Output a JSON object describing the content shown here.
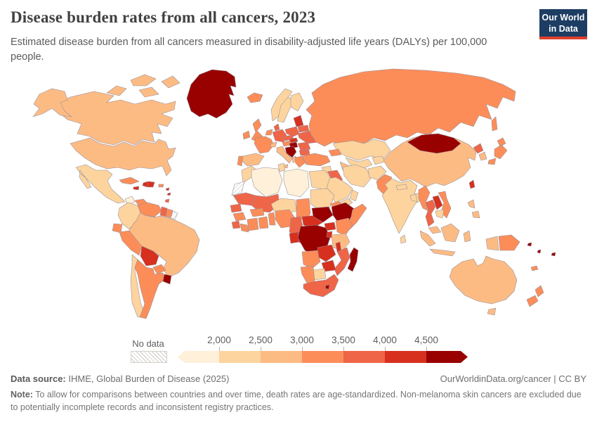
{
  "header": {
    "title": "Disease burden rates from all cancers, 2023",
    "subtitle": "Estimated disease burden from all cancers measured in disability-adjusted life years (DALYs) per 100,000 people."
  },
  "logo": {
    "line1": "Our World",
    "line2": "in Data",
    "bg": "#1d3d63",
    "accent": "#e0402c"
  },
  "legend": {
    "no_data_label": "No data",
    "tick_labels": [
      "2,000",
      "2,500",
      "3,000",
      "3,500",
      "4,000",
      "4,500"
    ]
  },
  "footer": {
    "source_label": "Data source:",
    "source_text": " IHME, Global Burden of Disease (2025)",
    "link": "OurWorldinData.org/cancer | CC BY",
    "note_label": "Note:",
    "note_text": " To allow for comparisons between countries and over time, death rates are age-standardized. Non-melanoma skin cancers are excluded due to potentially incomplete records and inconsistent registry practices."
  },
  "chart_data": {
    "type": "choropleth_map",
    "title": "Disease burden rates from all cancers, 2023",
    "metric": "DALYs from all cancers per 100,000 people (age-standardized)",
    "year": 2023,
    "legend_bins": [
      {
        "range": "< 2,000",
        "color": "#fef0d9"
      },
      {
        "range": "2,000-2,500",
        "color": "#fdd49e"
      },
      {
        "range": "2,500-3,000",
        "color": "#fdbb84"
      },
      {
        "range": "3,000-3,500",
        "color": "#fc8d59"
      },
      {
        "range": "3,500-4,000",
        "color": "#ef6548"
      },
      {
        "range": "4,000-4,500",
        "color": "#d7301f"
      },
      {
        "range": "> 4,500",
        "color": "#990000"
      }
    ],
    "no_data_countries": [
      "Western Sahara",
      "French Guiana"
    ],
    "countries": [
      {
        "id": "canada",
        "name": "Canada",
        "bin": 2
      },
      {
        "id": "usa",
        "name": "United States",
        "bin": 2
      },
      {
        "id": "greenland",
        "name": "Greenland",
        "bin": 6
      },
      {
        "id": "iceland",
        "name": "Iceland",
        "bin": 3
      },
      {
        "id": "mexico",
        "name": "Mexico",
        "bin": 1
      },
      {
        "id": "guatemala",
        "name": "Guatemala",
        "bin": 0
      },
      {
        "id": "honduras",
        "name": "Honduras",
        "bin": 3
      },
      {
        "id": "nicaragua",
        "name": "Nicaragua",
        "bin": 1
      },
      {
        "id": "costa-rica",
        "name": "Costa Rica",
        "bin": 1
      },
      {
        "id": "panama",
        "name": "Panama",
        "bin": 3
      },
      {
        "id": "cuba",
        "name": "Cuba",
        "bin": 3
      },
      {
        "id": "jamaica",
        "name": "Jamaica",
        "bin": 5
      },
      {
        "id": "haiti",
        "name": "Haiti",
        "bin": 5
      },
      {
        "id": "dominican-republic",
        "name": "Dominican Republic",
        "bin": 5
      },
      {
        "id": "puerto-rico",
        "name": "Puerto Rico",
        "bin": 3
      },
      {
        "id": "lesser-antilles",
        "name": "Lesser Antilles",
        "bin": 5
      },
      {
        "id": "trinidad-and-tobago",
        "name": "Trinidad and Tobago",
        "bin": 4
      },
      {
        "id": "colombia",
        "name": "Colombia",
        "bin": 1
      },
      {
        "id": "venezuela",
        "name": "Venezuela",
        "bin": 3
      },
      {
        "id": "guyana",
        "name": "Guyana",
        "bin": 4
      },
      {
        "id": "suriname",
        "name": "Suriname",
        "bin": 3
      },
      {
        "id": "french-guiana",
        "name": "French Guiana",
        "bin": null
      },
      {
        "id": "ecuador",
        "name": "Ecuador",
        "bin": 3
      },
      {
        "id": "peru",
        "name": "Peru",
        "bin": 3
      },
      {
        "id": "brazil",
        "name": "Brazil",
        "bin": 2
      },
      {
        "id": "bolivia",
        "name": "Bolivia",
        "bin": 5
      },
      {
        "id": "paraguay",
        "name": "Paraguay",
        "bin": 3
      },
      {
        "id": "chile",
        "name": "Chile",
        "bin": 1
      },
      {
        "id": "argentina",
        "name": "Argentina",
        "bin": 3
      },
      {
        "id": "uruguay",
        "name": "Uruguay",
        "bin": 6
      },
      {
        "id": "ireland",
        "name": "Ireland",
        "bin": 3
      },
      {
        "id": "united-kingdom",
        "name": "United Kingdom",
        "bin": 3
      },
      {
        "id": "norway",
        "name": "Norway",
        "bin": 1
      },
      {
        "id": "sweden",
        "name": "Sweden",
        "bin": 1
      },
      {
        "id": "finland",
        "name": "Finland",
        "bin": 1
      },
      {
        "id": "denmark",
        "name": "Denmark",
        "bin": 4
      },
      {
        "id": "germany",
        "name": "Germany",
        "bin": 4
      },
      {
        "id": "netherlands",
        "name": "Netherlands",
        "bin": 3
      },
      {
        "id": "france",
        "name": "France",
        "bin": 3
      },
      {
        "id": "spain",
        "name": "Spain",
        "bin": 2
      },
      {
        "id": "portugal",
        "name": "Portugal",
        "bin": 3
      },
      {
        "id": "switzerland",
        "name": "Switzerland",
        "bin": 2
      },
      {
        "id": "italy",
        "name": "Italy",
        "bin": 2
      },
      {
        "id": "austria",
        "name": "Austria",
        "bin": 3
      },
      {
        "id": "czechia",
        "name": "Czechia",
        "bin": 4
      },
      {
        "id": "poland",
        "name": "Poland",
        "bin": 4
      },
      {
        "id": "baltic-states",
        "name": "Baltic states",
        "bin": 5
      },
      {
        "id": "belarus",
        "name": "Belarus",
        "bin": 4
      },
      {
        "id": "ukraine",
        "name": "Ukraine",
        "bin": 4
      },
      {
        "id": "slovakia",
        "name": "Slovakia",
        "bin": 5
      },
      {
        "id": "hungary",
        "name": "Hungary",
        "bin": 6
      },
      {
        "id": "romania",
        "name": "Romania",
        "bin": 4
      },
      {
        "id": "serbia-croatia",
        "name": "Serbia and Croatia",
        "bin": 6
      },
      {
        "id": "albania",
        "name": "Albania",
        "bin": 2
      },
      {
        "id": "bulgaria",
        "name": "Bulgaria",
        "bin": 4
      },
      {
        "id": "greece",
        "name": "Greece",
        "bin": 3
      },
      {
        "id": "russia",
        "name": "Russia",
        "bin": 3
      },
      {
        "id": "kazakhstan",
        "name": "Kazakhstan",
        "bin": 1
      },
      {
        "id": "uzbekistan",
        "name": "Uzbekistan",
        "bin": 1
      },
      {
        "id": "turkmenistan",
        "name": "Turkmenistan",
        "bin": 2
      },
      {
        "id": "kyrgyzstan-tajikistan",
        "name": "Kyrgyzstan and Tajikistan",
        "bin": 1
      },
      {
        "id": "caucasus",
        "name": "Caucasus",
        "bin": 3
      },
      {
        "id": "turkey",
        "name": "Turkey",
        "bin": 3
      },
      {
        "id": "syria",
        "name": "Syria",
        "bin": 1
      },
      {
        "id": "iraq",
        "name": "Iraq",
        "bin": 4
      },
      {
        "id": "iran",
        "name": "Iran",
        "bin": 1
      },
      {
        "id": "israel-jordan",
        "name": "Israel and Jordan",
        "bin": 1
      },
      {
        "id": "saudi-arabia",
        "name": "Saudi Arabia",
        "bin": 1
      },
      {
        "id": "yemen",
        "name": "Yemen",
        "bin": 1
      },
      {
        "id": "oman",
        "name": "Oman",
        "bin": 1
      },
      {
        "id": "afghanistan",
        "name": "Afghanistan",
        "bin": 1
      },
      {
        "id": "pakistan",
        "name": "Pakistan",
        "bin": 3
      },
      {
        "id": "india",
        "name": "India",
        "bin": 1
      },
      {
        "id": "nepal",
        "name": "Nepal",
        "bin": 1
      },
      {
        "id": "bangladesh",
        "name": "Bangladesh",
        "bin": 1
      },
      {
        "id": "sri-lanka",
        "name": "Sri Lanka",
        "bin": 1
      },
      {
        "id": "china",
        "name": "China",
        "bin": 2
      },
      {
        "id": "mongolia",
        "name": "Mongolia",
        "bin": 6
      },
      {
        "id": "north-korea",
        "name": "North Korea",
        "bin": 4
      },
      {
        "id": "south-korea",
        "name": "South Korea",
        "bin": 2
      },
      {
        "id": "japan",
        "name": "Japan",
        "bin": 3
      },
      {
        "id": "taiwan",
        "name": "Taiwan",
        "bin": 5
      },
      {
        "id": "myanmar",
        "name": "Myanmar",
        "bin": 3
      },
      {
        "id": "thailand",
        "name": "Thailand",
        "bin": 4
      },
      {
        "id": "laos",
        "name": "Laos",
        "bin": 5
      },
      {
        "id": "vietnam",
        "name": "Vietnam",
        "bin": 3
      },
      {
        "id": "cambodia",
        "name": "Cambodia",
        "bin": 1
      },
      {
        "id": "malaysia",
        "name": "Malaysia",
        "bin": 2
      },
      {
        "id": "indonesia",
        "name": "Indonesia",
        "bin": 2
      },
      {
        "id": "philippines",
        "name": "Philippines",
        "bin": 2
      },
      {
        "id": "papua-new-guinea",
        "name": "Papua New Guinea",
        "bin": 3
      },
      {
        "id": "australia",
        "name": "Australia",
        "bin": 2
      },
      {
        "id": "new-zealand",
        "name": "New Zealand",
        "bin": 3
      },
      {
        "id": "solomon-islands",
        "name": "Solomon Islands",
        "bin": 6
      },
      {
        "id": "vanuatu",
        "name": "Vanuatu",
        "bin": 6
      },
      {
        "id": "fiji",
        "name": "Fiji",
        "bin": 6
      },
      {
        "id": "new-caledonia",
        "name": "New Caledonia",
        "bin": 3
      },
      {
        "id": "morocco",
        "name": "Morocco",
        "bin": 1
      },
      {
        "id": "algeria",
        "name": "Algeria",
        "bin": 0
      },
      {
        "id": "tunisia",
        "name": "Tunisia",
        "bin": 1
      },
      {
        "id": "libya",
        "name": "Libya",
        "bin": 0
      },
      {
        "id": "egypt",
        "name": "Egypt",
        "bin": 1
      },
      {
        "id": "western-sahara",
        "name": "Western Sahara",
        "bin": null
      },
      {
        "id": "mauritania",
        "name": "Mauritania",
        "bin": 4
      },
      {
        "id": "mali",
        "name": "Mali",
        "bin": 4
      },
      {
        "id": "niger",
        "name": "Niger",
        "bin": 1
      },
      {
        "id": "chad",
        "name": "Chad",
        "bin": 3
      },
      {
        "id": "sudan",
        "name": "Sudan",
        "bin": 1
      },
      {
        "id": "eritrea",
        "name": "Eritrea",
        "bin": 3
      },
      {
        "id": "senegal",
        "name": "Senegal",
        "bin": 4
      },
      {
        "id": "guinea",
        "name": "Guinea",
        "bin": 3
      },
      {
        "id": "sierra-leone",
        "name": "Sierra Leone",
        "bin": 4
      },
      {
        "id": "liberia",
        "name": "Liberia",
        "bin": 3
      },
      {
        "id": "ivory-coast",
        "name": "Cote d'Ivoire",
        "bin": 3
      },
      {
        "id": "ghana",
        "name": "Ghana",
        "bin": 3
      },
      {
        "id": "burkina-faso",
        "name": "Burkina Faso",
        "bin": 3
      },
      {
        "id": "benin",
        "name": "Benin and Togo",
        "bin": 3
      },
      {
        "id": "nigeria",
        "name": "Nigeria",
        "bin": 3
      },
      {
        "id": "cameroon",
        "name": "Cameroon",
        "bin": 4
      },
      {
        "id": "gabon",
        "name": "Gabon",
        "bin": 5
      },
      {
        "id": "congo",
        "name": "Congo",
        "bin": 5
      },
      {
        "id": "central-african-republic",
        "name": "Central African Republic",
        "bin": 5
      },
      {
        "id": "south-sudan",
        "name": "South Sudan",
        "bin": 6
      },
      {
        "id": "ethiopia",
        "name": "Ethiopia",
        "bin": 6
      },
      {
        "id": "somalia",
        "name": "Somalia",
        "bin": 3
      },
      {
        "id": "uganda",
        "name": "Uganda",
        "bin": 5
      },
      {
        "id": "kenya",
        "name": "Kenya",
        "bin": 3
      },
      {
        "id": "drc",
        "name": "Democratic Republic of Congo",
        "bin": 6
      },
      {
        "id": "rwanda-burundi",
        "name": "Rwanda and Burundi",
        "bin": 5
      },
      {
        "id": "tanzania",
        "name": "Tanzania",
        "bin": 2
      },
      {
        "id": "angola",
        "name": "Angola",
        "bin": 3
      },
      {
        "id": "zambia",
        "name": "Zambia",
        "bin": 5
      },
      {
        "id": "malawi",
        "name": "Malawi",
        "bin": 5
      },
      {
        "id": "mozambique",
        "name": "Mozambique",
        "bin": 4
      },
      {
        "id": "zimbabwe",
        "name": "Zimbabwe",
        "bin": 5
      },
      {
        "id": "botswana",
        "name": "Botswana",
        "bin": 1
      },
      {
        "id": "namibia",
        "name": "Namibia",
        "bin": 3
      },
      {
        "id": "south-africa",
        "name": "South Africa",
        "bin": 4
      },
      {
        "id": "lesotho",
        "name": "Lesotho",
        "bin": 6
      },
      {
        "id": "madagascar",
        "name": "Madagascar",
        "bin": 6
      }
    ]
  }
}
